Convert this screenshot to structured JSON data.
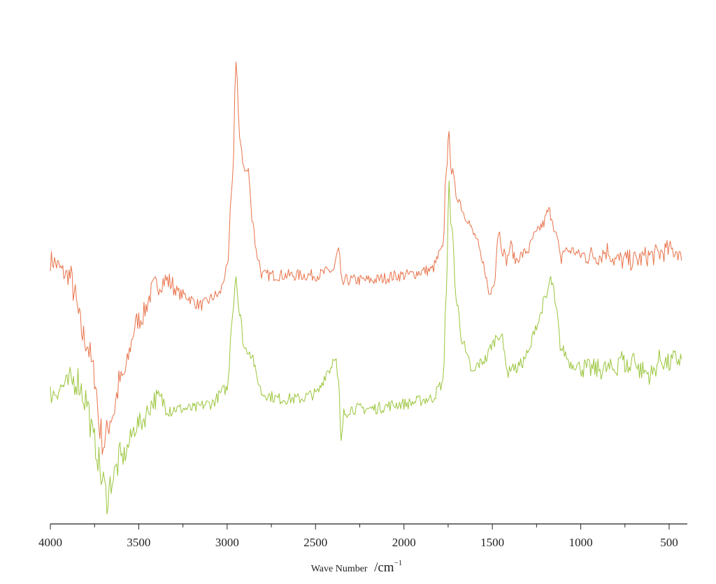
{
  "chart_data": {
    "type": "line",
    "title": "",
    "xlabel": "Wave Number",
    "xlabel_unit": "/cm",
    "xlabel_unit_exp": "−1",
    "ylabel": "",
    "xlim": [
      4000,
      400
    ],
    "x_reversed": true,
    "y_axis_visible": false,
    "grid": false,
    "legend": "none",
    "x_ticks": [
      4000,
      3500,
      3000,
      2500,
      2000,
      1500,
      1000,
      500
    ],
    "x_ticks_minor_step": 250,
    "ylim": [
      0,
      1
    ],
    "series": [
      {
        "color": "#e8734a",
        "x": [
          4000,
          3900,
          3800,
          3750,
          3720,
          3700,
          3650,
          3600,
          3500,
          3400,
          3350,
          3250,
          3150,
          3050,
          3000,
          2970,
          2950,
          2930,
          2900,
          2880,
          2860,
          2830,
          2800,
          2700,
          2600,
          2500,
          2400,
          2370,
          2350,
          2330,
          2300,
          2200,
          2000,
          1850,
          1780,
          1760,
          1745,
          1730,
          1700,
          1650,
          1600,
          1550,
          1515,
          1490,
          1465,
          1440,
          1420,
          1395,
          1370,
          1340,
          1300,
          1260,
          1220,
          1180,
          1165,
          1140,
          1110,
          1100,
          1050,
          1000,
          900,
          850,
          800,
          700,
          600,
          500,
          450,
          430
        ],
        "values": [
          0.53,
          0.5,
          0.37,
          0.3,
          0.19,
          0.16,
          0.22,
          0.29,
          0.41,
          0.48,
          0.49,
          0.46,
          0.44,
          0.46,
          0.51,
          0.69,
          0.93,
          0.78,
          0.71,
          0.71,
          0.62,
          0.54,
          0.5,
          0.5,
          0.5,
          0.5,
          0.51,
          0.55,
          0.48,
          0.49,
          0.49,
          0.49,
          0.5,
          0.51,
          0.55,
          0.72,
          0.78,
          0.71,
          0.66,
          0.62,
          0.58,
          0.52,
          0.46,
          0.49,
          0.59,
          0.55,
          0.53,
          0.56,
          0.53,
          0.54,
          0.55,
          0.58,
          0.6,
          0.63,
          0.62,
          0.58,
          0.53,
          0.55,
          0.55,
          0.54,
          0.54,
          0.55,
          0.53,
          0.53,
          0.54,
          0.55,
          0.55,
          0.53
        ]
      },
      {
        "color": "#9bc53d",
        "x": [
          4000,
          3900,
          3850,
          3800,
          3750,
          3700,
          3680,
          3650,
          3600,
          3500,
          3400,
          3300,
          3200,
          3100,
          3000,
          2970,
          2950,
          2930,
          2900,
          2880,
          2860,
          2830,
          2800,
          2700,
          2600,
          2500,
          2420,
          2390,
          2370,
          2355,
          2340,
          2300,
          2200,
          2000,
          1850,
          1780,
          1760,
          1745,
          1730,
          1700,
          1670,
          1640,
          1610,
          1580,
          1540,
          1500,
          1470,
          1450,
          1430,
          1410,
          1390,
          1370,
          1340,
          1300,
          1250,
          1200,
          1170,
          1160,
          1140,
          1110,
          1050,
          950,
          850,
          800,
          780,
          750,
          720,
          700,
          680,
          600,
          550,
          500,
          470,
          430
        ],
        "values": [
          0.26,
          0.28,
          0.29,
          0.25,
          0.16,
          0.08,
          0.05,
          0.09,
          0.13,
          0.2,
          0.25,
          0.23,
          0.23,
          0.24,
          0.27,
          0.42,
          0.5,
          0.42,
          0.35,
          0.35,
          0.34,
          0.29,
          0.26,
          0.25,
          0.25,
          0.26,
          0.31,
          0.34,
          0.28,
          0.16,
          0.22,
          0.23,
          0.23,
          0.24,
          0.25,
          0.28,
          0.47,
          0.68,
          0.59,
          0.44,
          0.37,
          0.33,
          0.3,
          0.32,
          0.33,
          0.36,
          0.38,
          0.38,
          0.34,
          0.3,
          0.32,
          0.31,
          0.32,
          0.34,
          0.4,
          0.45,
          0.49,
          0.48,
          0.43,
          0.35,
          0.32,
          0.31,
          0.31,
          0.31,
          0.34,
          0.32,
          0.31,
          0.35,
          0.31,
          0.3,
          0.33,
          0.32,
          0.33,
          0.33
        ]
      }
    ]
  }
}
